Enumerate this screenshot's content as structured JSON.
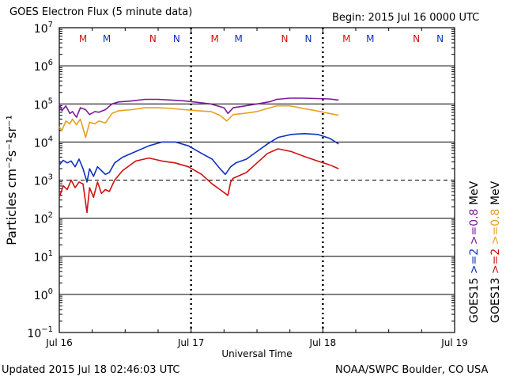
{
  "header": {
    "title": "GOES Electron Flux (5 minute data)",
    "begin": "Begin: 2015 Jul 16 0000 UTC"
  },
  "footer": {
    "updated": "Updated 2015 Jul 18 02:46:03 UTC",
    "credit": "NOAA/SWPC Boulder, CO USA"
  },
  "chart_data": {
    "type": "line",
    "title": "GOES Electron Flux (5 minute data)",
    "xlabel": "Universal Time",
    "ylabel": "Particles cm⁻²s⁻¹sr⁻¹",
    "yscale": "log",
    "ylim_exp": [
      -1,
      7
    ],
    "xlim_days": [
      0,
      3
    ],
    "x_ticks": [
      {
        "day": 0,
        "label": "Jul 16"
      },
      {
        "day": 1,
        "label": "Jul 17"
      },
      {
        "day": 2,
        "label": "Jul 18"
      },
      {
        "day": 3,
        "label": "Jul 19"
      }
    ],
    "y_ticks": [
      {
        "base": "10",
        "exp": "7"
      },
      {
        "base": "10",
        "exp": "6"
      },
      {
        "base": "10",
        "exp": "5"
      },
      {
        "base": "10",
        "exp": "4"
      },
      {
        "base": "10",
        "exp": "3"
      },
      {
        "base": "10",
        "exp": "2"
      },
      {
        "base": "10",
        "exp": "1"
      },
      {
        "base": "10",
        "exp": "0"
      },
      {
        "base": "10",
        "exp": "−1"
      }
    ],
    "threshold_exp": 3,
    "markers": [
      {
        "day": 0.18,
        "letter": "M",
        "color": "#d01010"
      },
      {
        "day": 0.36,
        "letter": "M",
        "color": "#1030c0"
      },
      {
        "day": 0.71,
        "letter": "N",
        "color": "#d01010"
      },
      {
        "day": 0.89,
        "letter": "N",
        "color": "#1030c0"
      },
      {
        "day": 1.18,
        "letter": "M",
        "color": "#d01010"
      },
      {
        "day": 1.36,
        "letter": "M",
        "color": "#1030c0"
      },
      {
        "day": 1.71,
        "letter": "N",
        "color": "#d01010"
      },
      {
        "day": 1.89,
        "letter": "N",
        "color": "#1030c0"
      },
      {
        "day": 2.18,
        "letter": "M",
        "color": "#d01010"
      },
      {
        "day": 2.36,
        "letter": "M",
        "color": "#1030c0"
      },
      {
        "day": 2.71,
        "letter": "N",
        "color": "#d01010"
      },
      {
        "day": 2.89,
        "letter": "N",
        "color": "#1030c0"
      }
    ],
    "series": [
      {
        "name": "GOES15 >=0.8 MeV",
        "color": "#7a1a9a",
        "points": [
          [
            0,
            5.0
          ],
          [
            0.02,
            4.82
          ],
          [
            0.05,
            4.95
          ],
          [
            0.08,
            4.75
          ],
          [
            0.1,
            4.8
          ],
          [
            0.13,
            4.65
          ],
          [
            0.16,
            4.9
          ],
          [
            0.2,
            4.85
          ],
          [
            0.23,
            4.72
          ],
          [
            0.27,
            4.8
          ],
          [
            0.3,
            4.78
          ],
          [
            0.35,
            4.85
          ],
          [
            0.4,
            5.0
          ],
          [
            0.45,
            5.05
          ],
          [
            0.55,
            5.08
          ],
          [
            0.65,
            5.12
          ],
          [
            0.75,
            5.12
          ],
          [
            0.85,
            5.1
          ],
          [
            0.95,
            5.08
          ],
          [
            1.05,
            5.04
          ],
          [
            1.15,
            5.0
          ],
          [
            1.25,
            4.9
          ],
          [
            1.28,
            4.75
          ],
          [
            1.32,
            4.9
          ],
          [
            1.38,
            4.93
          ],
          [
            1.5,
            5.0
          ],
          [
            1.6,
            5.06
          ],
          [
            1.65,
            5.12
          ],
          [
            1.75,
            5.15
          ],
          [
            1.85,
            5.15
          ],
          [
            1.95,
            5.14
          ],
          [
            2.05,
            5.13
          ],
          [
            2.12,
            5.1
          ]
        ]
      },
      {
        "name": "GOES13 >=0.8 MeV",
        "color": "#e6a020",
        "points": [
          [
            0,
            4.4
          ],
          [
            0.02,
            4.3
          ],
          [
            0.05,
            4.55
          ],
          [
            0.08,
            4.48
          ],
          [
            0.1,
            4.6
          ],
          [
            0.13,
            4.45
          ],
          [
            0.16,
            4.6
          ],
          [
            0.2,
            4.12
          ],
          [
            0.23,
            4.52
          ],
          [
            0.27,
            4.48
          ],
          [
            0.3,
            4.55
          ],
          [
            0.35,
            4.5
          ],
          [
            0.4,
            4.75
          ],
          [
            0.45,
            4.82
          ],
          [
            0.55,
            4.85
          ],
          [
            0.65,
            4.9
          ],
          [
            0.75,
            4.9
          ],
          [
            0.85,
            4.88
          ],
          [
            0.95,
            4.85
          ],
          [
            1.05,
            4.82
          ],
          [
            1.15,
            4.8
          ],
          [
            1.22,
            4.7
          ],
          [
            1.27,
            4.55
          ],
          [
            1.32,
            4.72
          ],
          [
            1.4,
            4.75
          ],
          [
            1.5,
            4.8
          ],
          [
            1.6,
            4.9
          ],
          [
            1.65,
            4.95
          ],
          [
            1.75,
            4.95
          ],
          [
            1.85,
            4.88
          ],
          [
            1.95,
            4.82
          ],
          [
            2.05,
            4.75
          ],
          [
            2.12,
            4.7
          ]
        ]
      },
      {
        "name": "GOES15 >=2 MeV",
        "color": "#1030c0",
        "points": [
          [
            0,
            3.4
          ],
          [
            0.03,
            3.52
          ],
          [
            0.06,
            3.45
          ],
          [
            0.09,
            3.5
          ],
          [
            0.12,
            3.35
          ],
          [
            0.15,
            3.55
          ],
          [
            0.18,
            3.3
          ],
          [
            0.21,
            2.95
          ],
          [
            0.23,
            3.3
          ],
          [
            0.26,
            3.1
          ],
          [
            0.29,
            3.35
          ],
          [
            0.32,
            3.25
          ],
          [
            0.35,
            3.15
          ],
          [
            0.38,
            3.2
          ],
          [
            0.42,
            3.45
          ],
          [
            0.48,
            3.6
          ],
          [
            0.58,
            3.75
          ],
          [
            0.68,
            3.9
          ],
          [
            0.78,
            4.0
          ],
          [
            0.88,
            4.0
          ],
          [
            0.98,
            3.9
          ],
          [
            1.08,
            3.7
          ],
          [
            1.16,
            3.55
          ],
          [
            1.22,
            3.3
          ],
          [
            1.26,
            3.15
          ],
          [
            1.3,
            3.35
          ],
          [
            1.34,
            3.45
          ],
          [
            1.42,
            3.55
          ],
          [
            1.5,
            3.75
          ],
          [
            1.58,
            3.95
          ],
          [
            1.66,
            4.12
          ],
          [
            1.76,
            4.2
          ],
          [
            1.86,
            4.22
          ],
          [
            1.96,
            4.2
          ],
          [
            2.05,
            4.1
          ],
          [
            2.12,
            3.95
          ]
        ]
      },
      {
        "name": "GOES13 >=2 MeV",
        "color": "#d01010",
        "points": [
          [
            0,
            2.55
          ],
          [
            0.03,
            2.85
          ],
          [
            0.06,
            2.75
          ],
          [
            0.09,
            3.0
          ],
          [
            0.12,
            2.8
          ],
          [
            0.15,
            2.95
          ],
          [
            0.18,
            2.9
          ],
          [
            0.21,
            2.15
          ],
          [
            0.23,
            2.8
          ],
          [
            0.26,
            2.55
          ],
          [
            0.29,
            2.95
          ],
          [
            0.32,
            2.65
          ],
          [
            0.35,
            2.75
          ],
          [
            0.38,
            2.7
          ],
          [
            0.42,
            3.0
          ],
          [
            0.48,
            3.25
          ],
          [
            0.58,
            3.5
          ],
          [
            0.68,
            3.58
          ],
          [
            0.78,
            3.5
          ],
          [
            0.88,
            3.45
          ],
          [
            0.98,
            3.35
          ],
          [
            1.08,
            3.15
          ],
          [
            1.16,
            2.9
          ],
          [
            1.22,
            2.75
          ],
          [
            1.28,
            2.6
          ],
          [
            1.3,
            2.95
          ],
          [
            1.32,
            3.05
          ],
          [
            1.42,
            3.2
          ],
          [
            1.5,
            3.45
          ],
          [
            1.58,
            3.7
          ],
          [
            1.66,
            3.82
          ],
          [
            1.76,
            3.75
          ],
          [
            1.86,
            3.62
          ],
          [
            1.96,
            3.5
          ],
          [
            2.05,
            3.4
          ],
          [
            2.12,
            3.3
          ]
        ]
      }
    ],
    "legend": [
      {
        "text": "GOES15",
        "color": "#000000"
      },
      {
        "text": ">=2",
        "color": "#1030c0"
      },
      {
        "text": ">=0.8",
        "color": "#7a1a9a"
      },
      {
        "text": "MeV",
        "color": "#000000"
      },
      {
        "text": "GOES13",
        "color": "#000000"
      },
      {
        "text": ">=2",
        "color": "#d01010"
      },
      {
        "text": ">=0.8",
        "color": "#e6a020"
      },
      {
        "text": "MeV",
        "color": "#000000"
      }
    ]
  }
}
